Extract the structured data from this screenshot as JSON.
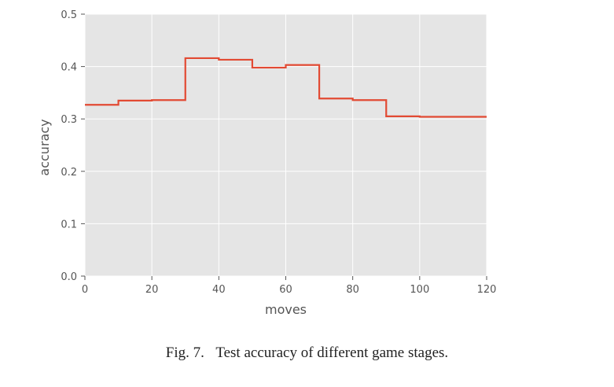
{
  "chart_data": {
    "type": "line",
    "step": true,
    "xlabel": "moves",
    "ylabel": "accuracy",
    "xlim": [
      0,
      120
    ],
    "ylim": [
      0,
      0.5
    ],
    "xticks": [
      0,
      20,
      40,
      60,
      80,
      100,
      120
    ],
    "yticks": [
      0.0,
      0.1,
      0.2,
      0.3,
      0.4,
      0.5
    ],
    "xtick_labels": [
      "0",
      "20",
      "40",
      "60",
      "80",
      "100",
      "120"
    ],
    "ytick_labels": [
      "0.0",
      "0.1",
      "0.2",
      "0.3",
      "0.4",
      "0.5"
    ],
    "grid": true,
    "style": "ggplot",
    "line_color": "#E24A33",
    "background_color": "#E5E5E5",
    "series": [
      {
        "x": [
          0,
          10,
          20,
          30,
          40,
          50,
          60,
          70,
          80,
          90,
          100,
          120
        ],
        "y": [
          0.327,
          0.335,
          0.336,
          0.416,
          0.413,
          0.398,
          0.403,
          0.339,
          0.336,
          0.305,
          0.304,
          0.304
        ]
      }
    ]
  },
  "caption": {
    "number": "Fig. 7.",
    "text": "Test accuracy of different game stages."
  }
}
